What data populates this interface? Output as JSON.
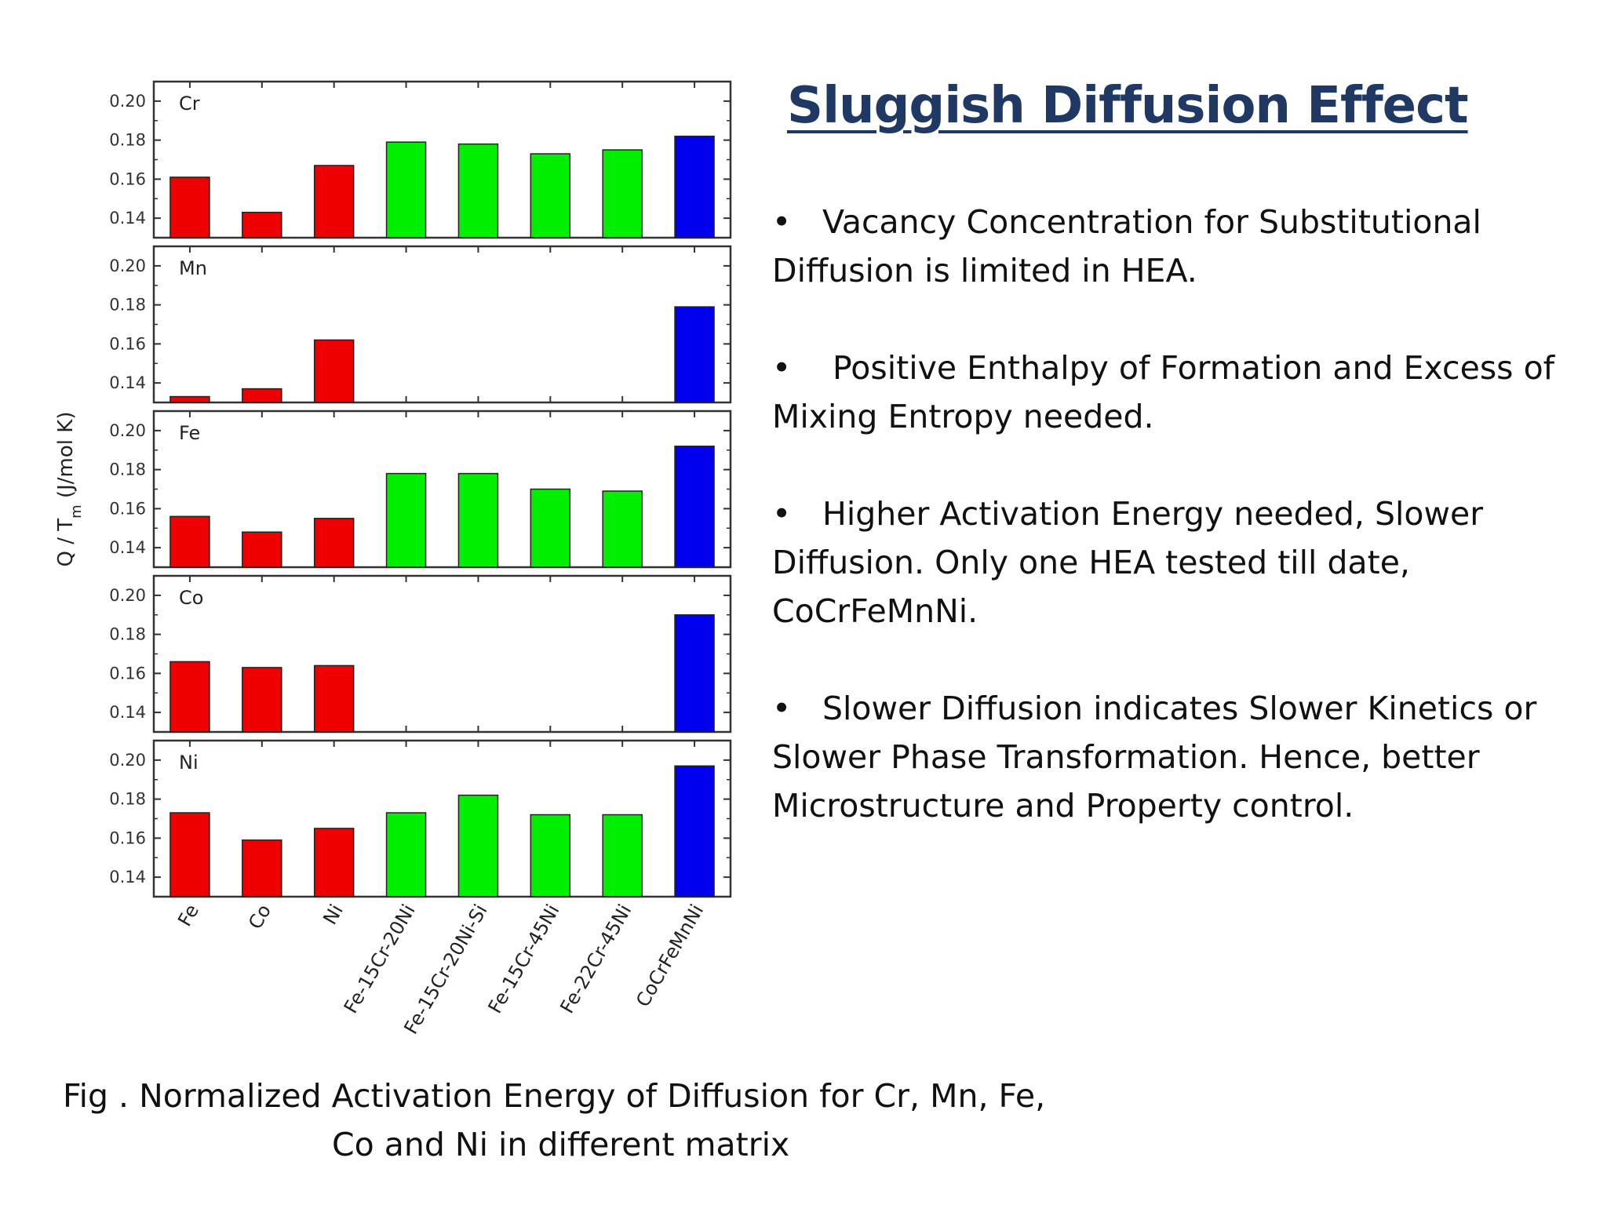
{
  "slide": {
    "title": "Sluggish Diffusion Effect",
    "bullets": [
      {
        "symbol": "•",
        "text": "Vacancy Concentration for Substitutional Diffusion is limited in HEA."
      },
      {
        "symbol": "•",
        "text": " Positive Enthalpy of Formation and Excess of Mixing Entropy needed."
      },
      {
        "symbol": "•",
        "text": "Higher Activation Energy needed, Slower Diffusion. Only one HEA tested till date, CoCrFeMnNi."
      },
      {
        "symbol": "•",
        "text": "Slower Diffusion indicates Slower Kinetics or Slower Phase Transformation. Hence, better Microstructure and Property control."
      }
    ],
    "caption_line1": "Fig . Normalized Activation Energy of Diffusion for Cr, Mn, Fe,",
    "caption_line2": "Co and Ni in different matrix"
  },
  "chart_data": {
    "type": "bar",
    "layout": "stacked-panels",
    "ylabel": "Q / T_m (J/mol K)",
    "ylim": [
      0.13,
      0.21
    ],
    "yticks": [
      "0.20",
      "0.18",
      "0.16",
      "0.14"
    ],
    "categories": [
      "Fe",
      "Co",
      "Ni",
      "Fe-15Cr-20Ni",
      "Fe-15Cr-20Ni-Si",
      "Fe-15Cr-45Ni",
      "Fe-22Cr-45Ni",
      "CoCrFeMnNi"
    ],
    "category_colors": [
      "#ee0000",
      "#ee0000",
      "#ee0000",
      "#00ee00",
      "#00ee00",
      "#00ee00",
      "#00ee00",
      "#0000ee"
    ],
    "panels": [
      {
        "label": "Cr",
        "values": [
          0.161,
          0.143,
          0.167,
          0.179,
          0.178,
          0.173,
          0.175,
          0.182
        ]
      },
      {
        "label": "Mn",
        "values": [
          0.133,
          0.137,
          0.162,
          null,
          null,
          null,
          null,
          0.179
        ]
      },
      {
        "label": "Fe",
        "values": [
          0.156,
          0.148,
          0.155,
          0.178,
          0.178,
          0.17,
          0.169,
          0.192
        ]
      },
      {
        "label": "Co",
        "values": [
          0.166,
          0.163,
          0.164,
          null,
          null,
          null,
          null,
          0.19
        ]
      },
      {
        "label": "Ni",
        "values": [
          0.173,
          0.159,
          0.165,
          0.173,
          0.182,
          0.172,
          0.172,
          0.197
        ]
      }
    ]
  }
}
